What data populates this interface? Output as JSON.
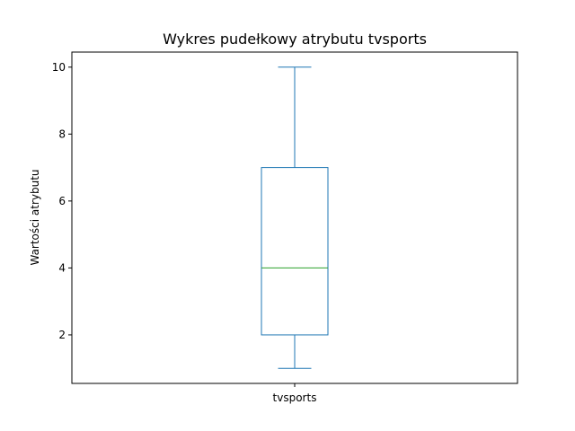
{
  "chart_data": {
    "type": "box",
    "title": "Wykres pudełkowy atrybutu tvsports",
    "xlabel": "",
    "ylabel": "Wartości atrybutu",
    "categories": [
      "tvsports"
    ],
    "boxes": [
      {
        "category": "tvsports",
        "whisker_low": 1,
        "q1": 2,
        "median": 4,
        "q3": 7,
        "whisker_high": 10
      }
    ],
    "ylim": [
      0.55,
      10.45
    ],
    "yticks": [
      2,
      4,
      6,
      8,
      10
    ],
    "grid": false,
    "legend": "none",
    "colors": {
      "box": "#1f77b4",
      "median": "#2ca02c",
      "axes": "#000000"
    }
  }
}
